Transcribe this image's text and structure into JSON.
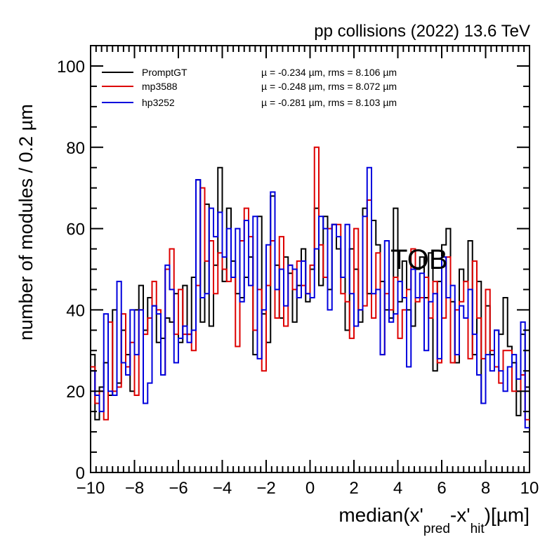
{
  "chart_data": {
    "type": "histogram",
    "header": "pp collisions (2022) 13.6 TeV",
    "annotation": "TOB",
    "ylabel": "number of modules / 0.2  µm",
    "xlabel": {
      "prefix": "median(x'",
      "sub1": "pred",
      "mid": "-x'",
      "sub2": "hit",
      "suffix": ")[µm]"
    },
    "xlim": [
      -10,
      10
    ],
    "ylim": [
      0,
      105
    ],
    "bin_width": 0.2,
    "x_ticks": [
      -10,
      -8,
      -6,
      -4,
      -2,
      0,
      2,
      4,
      6,
      8,
      10
    ],
    "x_tick_labels": [
      "−10",
      "−8",
      "−6",
      "−4",
      "−2",
      "0",
      "2",
      "4",
      "6",
      "8",
      "10"
    ],
    "y_ticks": [
      0,
      20,
      40,
      60,
      80,
      100
    ],
    "y_tick_labels": [
      "0",
      "20",
      "40",
      "60",
      "80",
      "100"
    ],
    "grid": false,
    "legend_position": "top-left",
    "series": [
      {
        "name": "PromptGT",
        "color": "#000000",
        "stats": "µ = -0.234 µm,  rms = 8.106 µm",
        "values": [
          29,
          13,
          21,
          27,
          19,
          40,
          22,
          35,
          29,
          20,
          40,
          46,
          35,
          43,
          41,
          32,
          33,
          38,
          37,
          44,
          32,
          46,
          34,
          48,
          72,
          37,
          66,
          36,
          51,
          75,
          47,
          65,
          52,
          44,
          43,
          48,
          53,
          29,
          63,
          39,
          32,
          68,
          51,
          38,
          53,
          49,
          37,
          46,
          55,
          42,
          50,
          65,
          46,
          63,
          45,
          61,
          55,
          48,
          35,
          55,
          50,
          37,
          65,
          44,
          62,
          56,
          47,
          40,
          38,
          65,
          42,
          52,
          40,
          36,
          50,
          53,
          43,
          54,
          25,
          47,
          56,
          60,
          42,
          27,
          50,
          47,
          57,
          29,
          47,
          17,
          41,
          29,
          35,
          34,
          43,
          31,
          27,
          14,
          34,
          21
        ]
      },
      {
        "name": "mp3588",
        "color": "#dd0000",
        "stats": "µ = -0.248 µm,  rms = 8.072 µm",
        "values": [
          26,
          17,
          20,
          13,
          37,
          20,
          21,
          39,
          26,
          32,
          19,
          40,
          34,
          38,
          47,
          40,
          24,
          50,
          55,
          34,
          45,
          34,
          34,
          30,
          46,
          70,
          52,
          57,
          44,
          54,
          50,
          47,
          48,
          31,
          57,
          65,
          58,
          35,
          45,
          25,
          46,
          57,
          38,
          58,
          36,
          51,
          45,
          52,
          46,
          44,
          51,
          80,
          56,
          48,
          60,
          61,
          61,
          44,
          42,
          33,
          60,
          40,
          41,
          67,
          38,
          54,
          29,
          44,
          40,
          48,
          33,
          40,
          45,
          55,
          42,
          43,
          48,
          38,
          47,
          27,
          38,
          53,
          27,
          40,
          42,
          47,
          28,
          52,
          38,
          28,
          45,
          30,
          26,
          22,
          30,
          30,
          20,
          20,
          24,
          13
        ]
      },
      {
        "name": "hp3252",
        "color": "#0000dd",
        "stats": "µ = -0.281 µm,  rms = 8.103 µm",
        "values": [
          25,
          19,
          15,
          39,
          20,
          19,
          47,
          27,
          24,
          40,
          29,
          40,
          17,
          22,
          41,
          39,
          24,
          51,
          45,
          27,
          33,
          36,
          32,
          35,
          72,
          43,
          44,
          65,
          58,
          64,
          53,
          60,
          48,
          60,
          42,
          62,
          46,
          63,
          28,
          40,
          56,
          69,
          45,
          50,
          41,
          51,
          50,
          43,
          52,
          44,
          43,
          55,
          63,
          60,
          40,
          61,
          58,
          48,
          61,
          44,
          36,
          40,
          63,
          75,
          44,
          45,
          29,
          57,
          37,
          39,
          47,
          43,
          26,
          50,
          43,
          49,
          30,
          42,
          44,
          28,
          53,
          43,
          46,
          29,
          41,
          38,
          45,
          34,
          24,
          17,
          29,
          25,
          35,
          25,
          20,
          26,
          29,
          23,
          37,
          11
        ]
      }
    ]
  }
}
